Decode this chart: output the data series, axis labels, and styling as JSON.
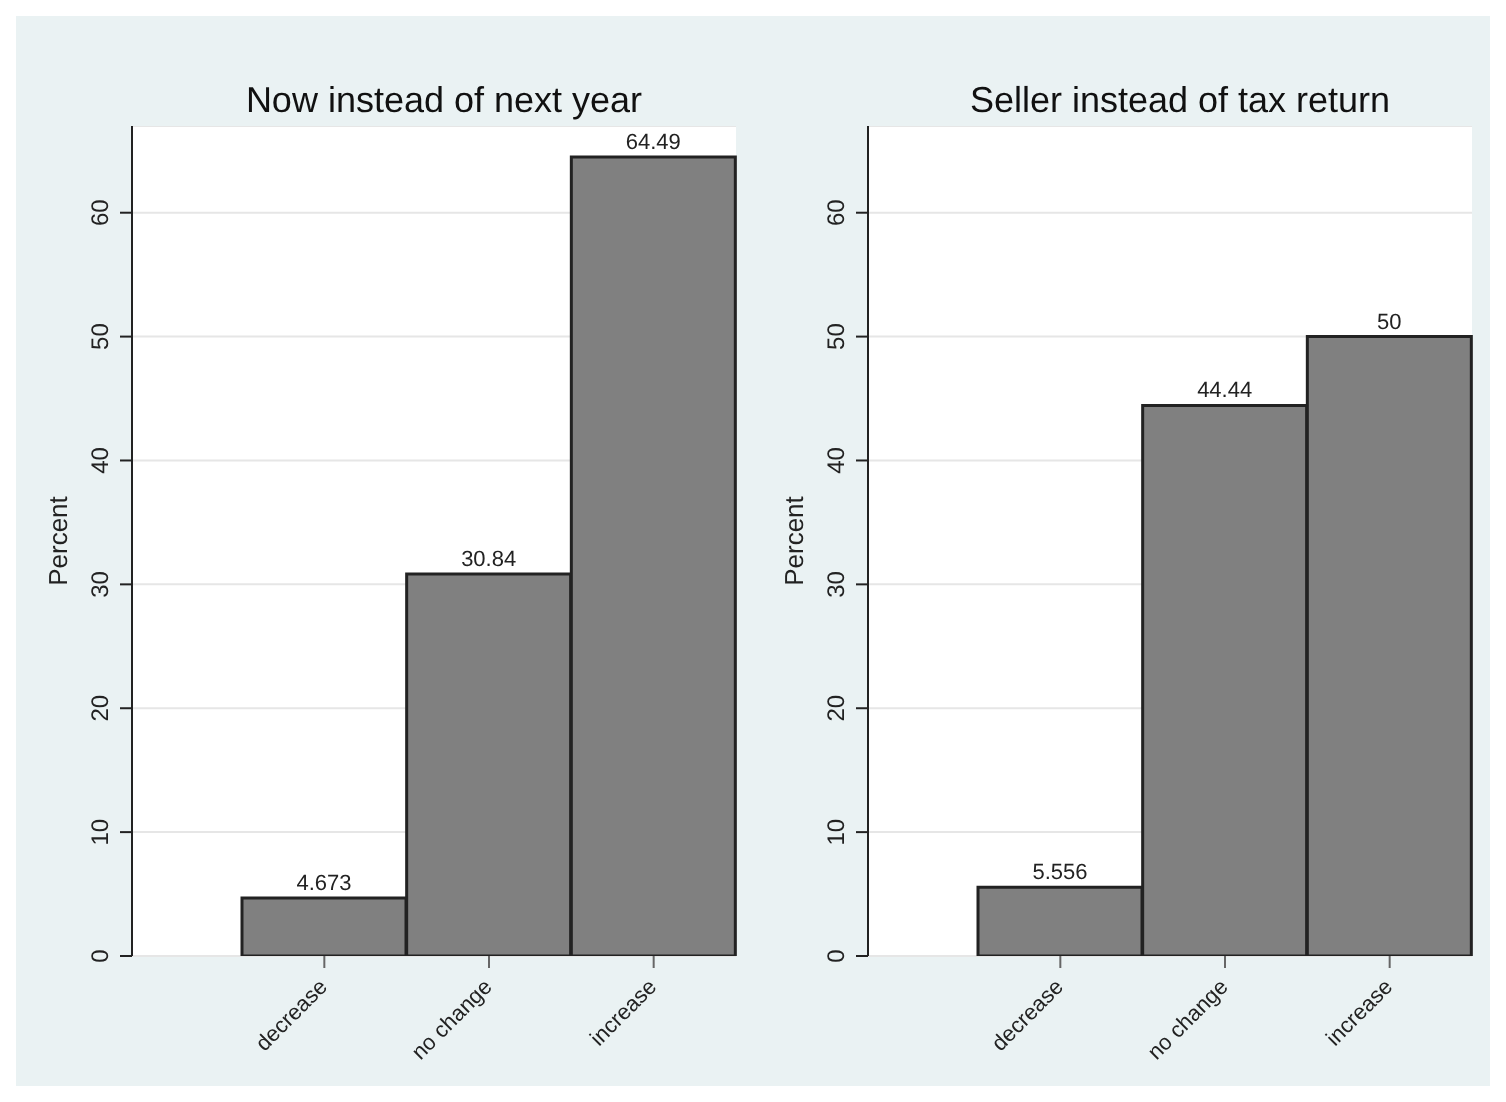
{
  "chart_data": [
    {
      "type": "bar",
      "title": "Now instead of next year",
      "ylabel": "Percent",
      "categories": [
        "decrease",
        "no change",
        "increase"
      ],
      "values": [
        4.673,
        30.84,
        64.49
      ],
      "color": "#808080",
      "ylim": [
        0,
        67
      ],
      "yticks": [
        0,
        10,
        20,
        30,
        40,
        50,
        60
      ],
      "grid": "y",
      "data_labels": true
    },
    {
      "type": "bar",
      "title": "Seller instead of tax return",
      "ylabel": "Percent",
      "categories": [
        "decrease",
        "no change",
        "increase"
      ],
      "values": [
        5.556,
        44.44,
        50
      ],
      "color": "#808080",
      "ylim": [
        0,
        67
      ],
      "yticks": [
        0,
        10,
        20,
        30,
        40,
        50,
        60
      ],
      "grid": "y",
      "data_labels": true
    }
  ]
}
